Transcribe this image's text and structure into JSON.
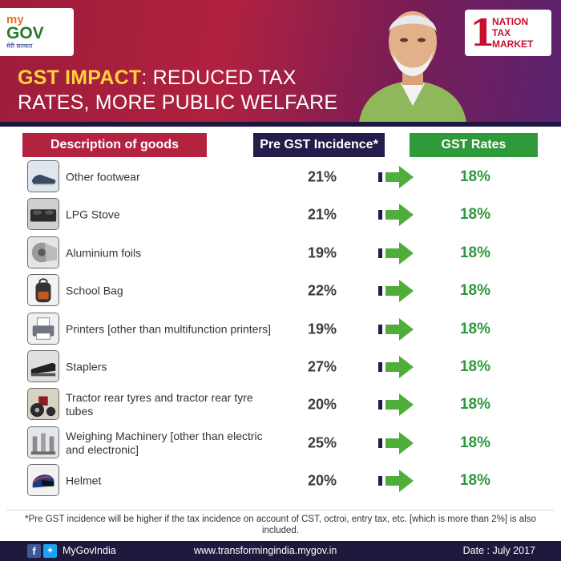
{
  "header": {
    "mygov_logo": {
      "my": "my",
      "gov": "GOV",
      "tagline": "मेरी सरकार"
    },
    "ntm_logo": {
      "numeral": "1",
      "line1": "NATION",
      "line2": "TAX",
      "line3": "MARKET"
    },
    "title_highlight": "GST IMPACT",
    "title_rest_line1": ": REDUCED TAX",
    "title_line2": "RATES, MORE PUBLIC WELFARE"
  },
  "columns": {
    "description": "Description of goods",
    "pre_gst": "Pre GST Incidence*",
    "gst_rates": "GST Rates"
  },
  "rows": [
    {
      "description": "Other footwear",
      "pre_gst": "21%",
      "gst_rate": "18%",
      "icon": "footwear-icon"
    },
    {
      "description": "LPG Stove",
      "pre_gst": "21%",
      "gst_rate": "18%",
      "icon": "stove-icon"
    },
    {
      "description": "Aluminium foils",
      "pre_gst": "19%",
      "gst_rate": "18%",
      "icon": "foil-roll-icon"
    },
    {
      "description": "School Bag",
      "pre_gst": "22%",
      "gst_rate": "18%",
      "icon": "school-bag-icon"
    },
    {
      "description": "Printers [other than multifunction printers]",
      "pre_gst": "19%",
      "gst_rate": "18%",
      "icon": "printer-icon"
    },
    {
      "description": "Staplers",
      "pre_gst": "27%",
      "gst_rate": "18%",
      "icon": "stapler-icon"
    },
    {
      "description": "Tractor rear tyres and tractor rear tyre tubes",
      "pre_gst": "20%",
      "gst_rate": "18%",
      "icon": "tractor-icon"
    },
    {
      "description": "Weighing Machinery [other than electric and electronic]",
      "pre_gst": "25%",
      "gst_rate": "18%",
      "icon": "weighing-machine-icon"
    },
    {
      "description": "Helmet",
      "pre_gst": "20%",
      "gst_rate": "18%",
      "icon": "helmet-icon"
    }
  ],
  "footnote": "*Pre GST incidence will be higher if the tax incidence on account of CST, octroi, entry tax, etc. [which is more than 2%] is also included.",
  "footer": {
    "handle": "MyGovIndia",
    "website": "www.transformingindia.mygov.in",
    "date": "Date : July 2017"
  },
  "colors": {
    "banner": "#b0213f",
    "header_desc": "#b3233f",
    "header_pre": "#241c4a",
    "header_gst": "#2e9a3a",
    "rate_text": "#2b9a3a",
    "arrow_green": "#4fae3a",
    "footer": "#1f1a3d"
  }
}
